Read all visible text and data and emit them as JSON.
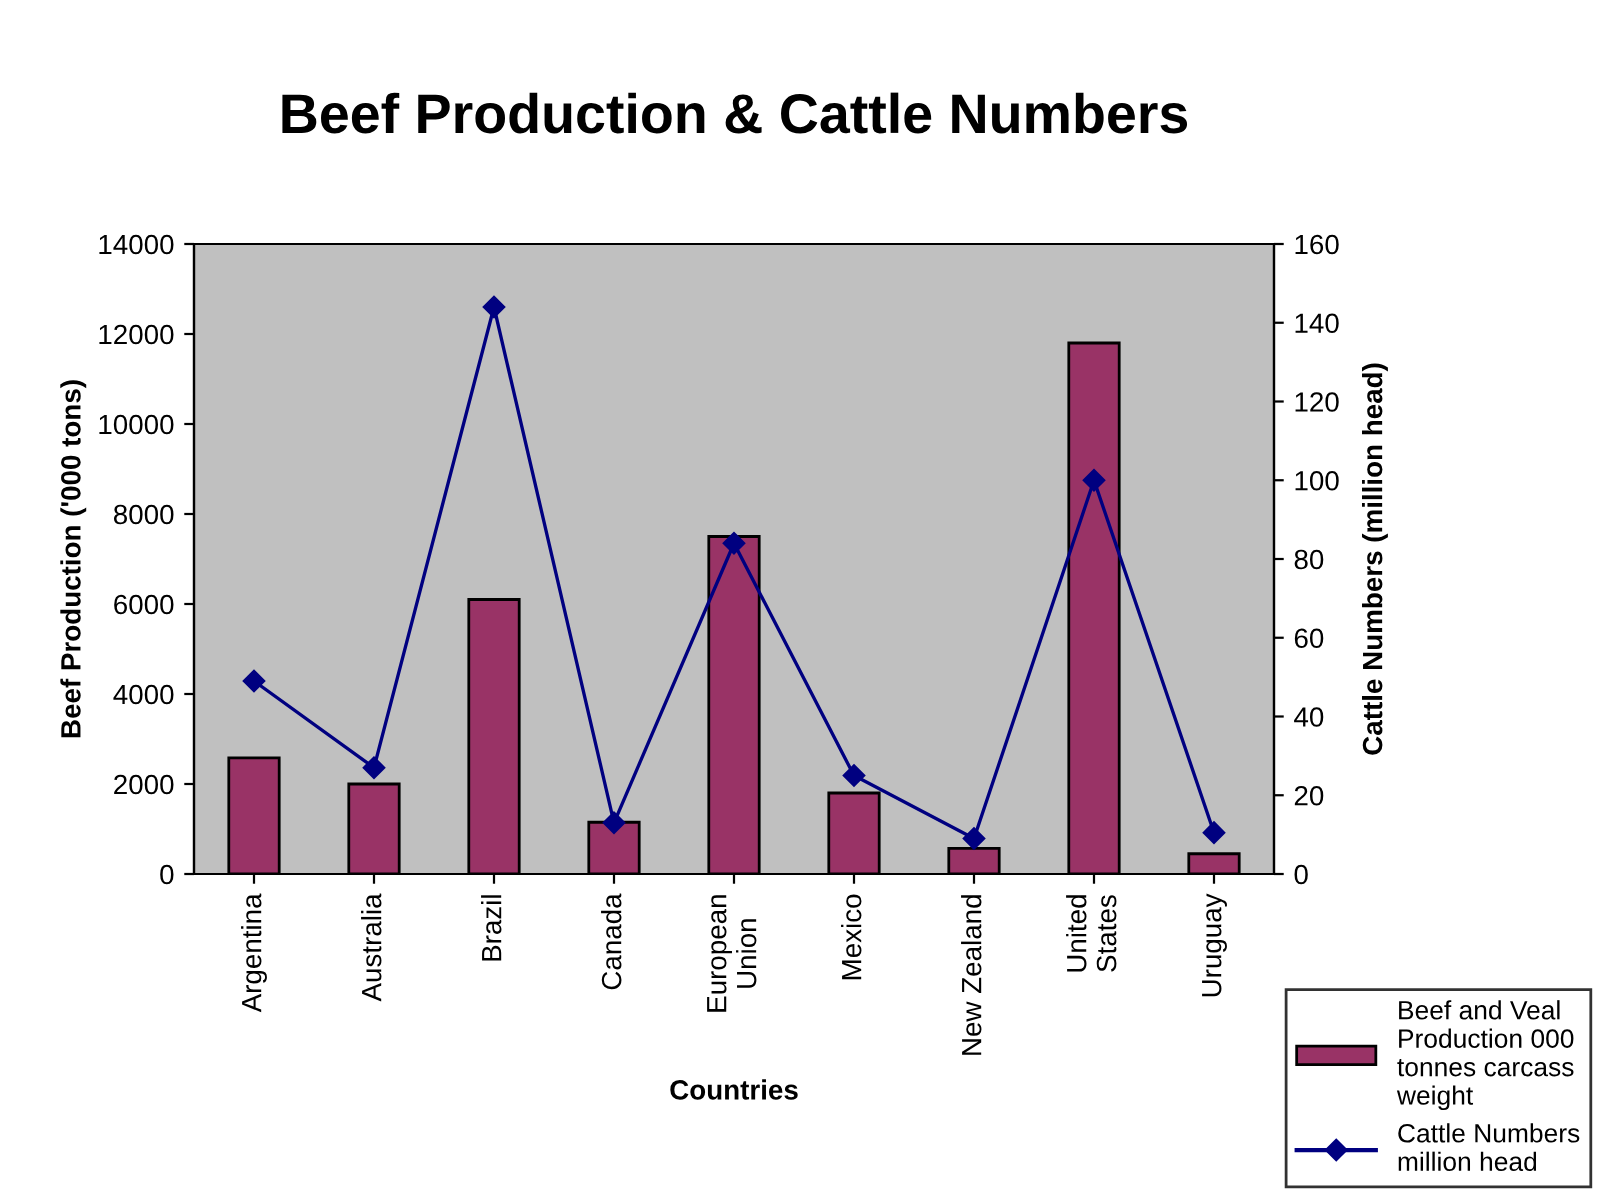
{
  "chart_data": {
    "type": "bar",
    "title": "Beef Production & Cattle Numbers",
    "xlabel": "Countries",
    "ylabel": "Beef Production ('000 tons)",
    "y2label": "Cattle Numbers (million head)",
    "categories": [
      "Argentina",
      "Australia",
      "Brazil",
      "Canada",
      "European Union",
      "Mexico",
      "New Zealand",
      "United States",
      "Uruguay"
    ],
    "series": [
      {
        "name": "Beef and Veal Production 000 tonnes carcass weight",
        "color": "#993366",
        "values": [
          2580,
          2000,
          6100,
          1150,
          7500,
          1800,
          570,
          11800,
          450
        ]
      },
      {
        "name": "Cattle Numbers million head",
        "type": "line",
        "axis": "y2",
        "color": "#000080",
        "marker": "diamond",
        "values": [
          49,
          27,
          144,
          13,
          84,
          25,
          9,
          100,
          10.5
        ]
      }
    ],
    "ylim": [
      0,
      14000
    ],
    "yticks": [
      0,
      2000,
      4000,
      6000,
      8000,
      10000,
      12000,
      14000
    ],
    "y2lim": [
      0,
      160
    ],
    "y2ticks": [
      0,
      20,
      40,
      60,
      80,
      100,
      120,
      140,
      160
    ],
    "grid": false,
    "legend": "bottom right"
  }
}
